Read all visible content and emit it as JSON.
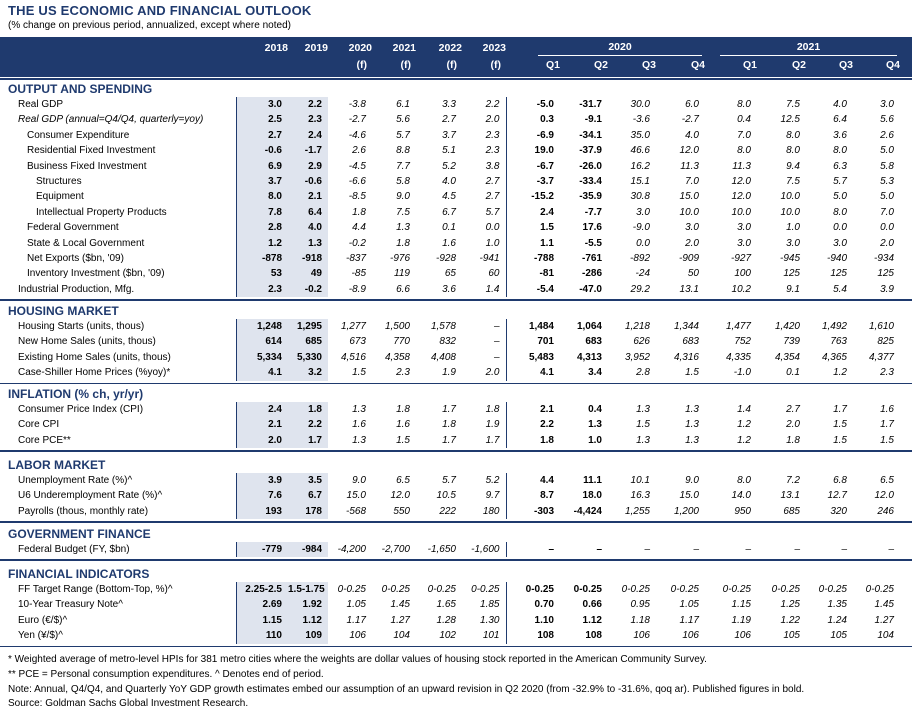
{
  "title": "THE US ECONOMIC AND FINANCIAL OUTLOOK",
  "subtitle": "(% change on previous period, annualized, except where noted)",
  "columns": {
    "annual": [
      [
        "2018",
        ""
      ],
      [
        "2019",
        ""
      ],
      [
        "2020",
        "(f)"
      ],
      [
        "2021",
        "(f)"
      ],
      [
        "2022",
        "(f)"
      ],
      [
        "2023",
        "(f)"
      ]
    ],
    "group2020": "2020",
    "group2021": "2021",
    "quarters": [
      "Q1",
      "Q2",
      "Q3",
      "Q4",
      "Q1",
      "Q2",
      "Q3",
      "Q4"
    ]
  },
  "sections": [
    {
      "title": "OUTPUT AND SPENDING",
      "rows": [
        {
          "label": "Real GDP",
          "indent": 0,
          "italic": false,
          "vals": [
            "3.0",
            "2.2",
            "-3.8",
            "6.1",
            "3.3",
            "2.2",
            "-5.0",
            "-31.7",
            "30.0",
            "6.0",
            "8.0",
            "7.5",
            "4.0",
            "3.0"
          ]
        },
        {
          "label": "Real GDP (annual=Q4/Q4, quarterly=yoy)",
          "indent": 0,
          "italic": true,
          "vals": [
            "2.5",
            "2.3",
            "-2.7",
            "5.6",
            "2.7",
            "2.0",
            "0.3",
            "-9.1",
            "-3.6",
            "-2.7",
            "0.4",
            "12.5",
            "6.4",
            "5.6"
          ]
        },
        {
          "label": "Consumer Expenditure",
          "indent": 1,
          "italic": false,
          "vals": [
            "2.7",
            "2.4",
            "-4.6",
            "5.7",
            "3.7",
            "2.3",
            "-6.9",
            "-34.1",
            "35.0",
            "4.0",
            "7.0",
            "8.0",
            "3.6",
            "2.6"
          ]
        },
        {
          "label": "Residential Fixed Investment",
          "indent": 1,
          "italic": false,
          "vals": [
            "-0.6",
            "-1.7",
            "2.6",
            "8.8",
            "5.1",
            "2.3",
            "19.0",
            "-37.9",
            "46.6",
            "12.0",
            "8.0",
            "8.0",
            "8.0",
            "5.0"
          ]
        },
        {
          "label": "Business Fixed Investment",
          "indent": 1,
          "italic": false,
          "vals": [
            "6.9",
            "2.9",
            "-4.5",
            "7.7",
            "5.2",
            "3.8",
            "-6.7",
            "-26.0",
            "16.2",
            "11.3",
            "11.3",
            "9.4",
            "6.3",
            "5.8"
          ]
        },
        {
          "label": "Structures",
          "indent": 2,
          "italic": false,
          "vals": [
            "3.7",
            "-0.6",
            "-6.6",
            "5.8",
            "4.0",
            "2.7",
            "-3.7",
            "-33.4",
            "15.1",
            "7.0",
            "12.0",
            "7.5",
            "5.7",
            "5.3"
          ]
        },
        {
          "label": "Equipment",
          "indent": 2,
          "italic": false,
          "vals": [
            "8.0",
            "2.1",
            "-8.5",
            "9.0",
            "4.5",
            "2.7",
            "-15.2",
            "-35.9",
            "30.8",
            "15.0",
            "12.0",
            "10.0",
            "5.0",
            "5.0"
          ]
        },
        {
          "label": "Intellectual Property Products",
          "indent": 2,
          "italic": false,
          "vals": [
            "7.8",
            "6.4",
            "1.8",
            "7.5",
            "6.7",
            "5.7",
            "2.4",
            "-7.7",
            "3.0",
            "10.0",
            "10.0",
            "10.0",
            "8.0",
            "7.0"
          ]
        },
        {
          "label": "Federal Government",
          "indent": 1,
          "italic": false,
          "vals": [
            "2.8",
            "4.0",
            "4.4",
            "1.3",
            "0.1",
            "0.0",
            "1.5",
            "17.6",
            "-9.0",
            "3.0",
            "3.0",
            "1.0",
            "0.0",
            "0.0"
          ]
        },
        {
          "label": "State & Local Government",
          "indent": 1,
          "italic": false,
          "vals": [
            "1.2",
            "1.3",
            "-0.2",
            "1.8",
            "1.6",
            "1.0",
            "1.1",
            "-5.5",
            "0.0",
            "2.0",
            "3.0",
            "3.0",
            "3.0",
            "2.0"
          ]
        },
        {
          "label": "Net Exports ($bn, '09)",
          "indent": 1,
          "italic": false,
          "vals": [
            "-878",
            "-918",
            "-837",
            "-976",
            "-928",
            "-941",
            "-788",
            "-761",
            "-892",
            "-909",
            "-927",
            "-945",
            "-940",
            "-934"
          ]
        },
        {
          "label": "Inventory Investment ($bn, '09)",
          "indent": 1,
          "italic": false,
          "vals": [
            "53",
            "49",
            "-85",
            "119",
            "65",
            "60",
            "-81",
            "-286",
            "-24",
            "50",
            "100",
            "125",
            "125",
            "125"
          ]
        },
        {
          "label": "Industrial Production, Mfg.",
          "indent": 0,
          "italic": false,
          "vals": [
            "2.3",
            "-0.2",
            "-8.9",
            "6.6",
            "3.6",
            "1.4",
            "-5.4",
            "-47.0",
            "29.2",
            "13.1",
            "10.2",
            "9.1",
            "5.4",
            "3.9"
          ]
        }
      ]
    },
    {
      "title": "HOUSING MARKET",
      "rows": [
        {
          "label": "Housing Starts (units, thous)",
          "indent": 0,
          "italic": false,
          "vals": [
            "1,248",
            "1,295",
            "1,277",
            "1,500",
            "1,578",
            "–",
            "1,484",
            "1,064",
            "1,218",
            "1,344",
            "1,477",
            "1,420",
            "1,492",
            "1,610"
          ]
        },
        {
          "label": "New Home Sales (units, thous)",
          "indent": 0,
          "italic": false,
          "vals": [
            "614",
            "685",
            "673",
            "770",
            "832",
            "–",
            "701",
            "683",
            "626",
            "683",
            "752",
            "739",
            "763",
            "825"
          ]
        },
        {
          "label": "Existing Home Sales (units, thous)",
          "indent": 0,
          "italic": false,
          "vals": [
            "5,334",
            "5,330",
            "4,516",
            "4,358",
            "4,408",
            "–",
            "5,483",
            "4,313",
            "3,952",
            "4,316",
            "4,335",
            "4,354",
            "4,365",
            "4,377"
          ]
        },
        {
          "label": "Case-Shiller Home Prices (%yoy)*",
          "indent": 0,
          "italic": false,
          "vals": [
            "4.1",
            "3.2",
            "1.5",
            "2.3",
            "1.9",
            "2.0",
            "4.1",
            "3.4",
            "2.8",
            "1.5",
            "-1.0",
            "0.1",
            "1.2",
            "2.3"
          ]
        }
      ]
    },
    {
      "title": "INFLATION (% ch, yr/yr)",
      "rows": [
        {
          "label": "Consumer Price Index (CPI)",
          "indent": 0,
          "italic": false,
          "vals": [
            "2.4",
            "1.8",
            "1.3",
            "1.8",
            "1.7",
            "1.8",
            "2.1",
            "0.4",
            "1.3",
            "1.3",
            "1.4",
            "2.7",
            "1.7",
            "1.6"
          ]
        },
        {
          "label": "Core CPI",
          "indent": 0,
          "italic": false,
          "vals": [
            "2.1",
            "2.2",
            "1.6",
            "1.6",
            "1.8",
            "1.9",
            "2.2",
            "1.3",
            "1.5",
            "1.3",
            "1.2",
            "2.0",
            "1.5",
            "1.7"
          ]
        },
        {
          "label": "Core PCE**",
          "indent": 0,
          "italic": false,
          "vals": [
            "2.0",
            "1.7",
            "1.3",
            "1.5",
            "1.7",
            "1.7",
            "1.8",
            "1.0",
            "1.3",
            "1.3",
            "1.2",
            "1.8",
            "1.5",
            "1.5"
          ]
        }
      ]
    },
    {
      "title": "LABOR MARKET",
      "rows": [
        {
          "label": "Unemployment Rate (%)^",
          "indent": 0,
          "italic": false,
          "vals": [
            "3.9",
            "3.5",
            "9.0",
            "6.5",
            "5.7",
            "5.2",
            "4.4",
            "11.1",
            "10.1",
            "9.0",
            "8.0",
            "7.2",
            "6.8",
            "6.5"
          ]
        },
        {
          "label": "U6 Underemployment Rate (%)^",
          "indent": 0,
          "italic": false,
          "vals": [
            "7.6",
            "6.7",
            "15.0",
            "12.0",
            "10.5",
            "9.7",
            "8.7",
            "18.0",
            "16.3",
            "15.0",
            "14.0",
            "13.1",
            "12.7",
            "12.0"
          ]
        },
        {
          "label": "Payrolls (thous, monthly rate)",
          "indent": 0,
          "italic": false,
          "vals": [
            "193",
            "178",
            "-568",
            "550",
            "222",
            "180",
            "-303",
            "-4,424",
            "1,255",
            "1,200",
            "950",
            "685",
            "320",
            "246"
          ]
        }
      ]
    },
    {
      "title": "GOVERNMENT FINANCE",
      "rows": [
        {
          "label": "Federal Budget (FY, $bn)",
          "indent": 0,
          "italic": false,
          "vals": [
            "-779",
            "-984",
            "-4,200",
            "-2,700",
            "-1,650",
            "-1,600",
            "–",
            "–",
            "–",
            "–",
            "–",
            "–",
            "–",
            "–"
          ]
        }
      ]
    },
    {
      "title": "FINANCIAL INDICATORS",
      "rows": [
        {
          "label": "FF Target Range (Bottom-Top, %)^",
          "indent": 0,
          "italic": false,
          "vals": [
            "2.25-2.5",
            "1.5-1.75",
            "0-0.25",
            "0-0.25",
            "0-0.25",
            "0-0.25",
            "0-0.25",
            "0-0.25",
            "0-0.25",
            "0-0.25",
            "0-0.25",
            "0-0.25",
            "0-0.25",
            "0-0.25"
          ]
        },
        {
          "label": "10-Year Treasury Note^",
          "indent": 0,
          "italic": false,
          "vals": [
            "2.69",
            "1.92",
            "1.05",
            "1.45",
            "1.65",
            "1.85",
            "0.70",
            "0.66",
            "0.95",
            "1.05",
            "1.15",
            "1.25",
            "1.35",
            "1.45"
          ]
        },
        {
          "label": "Euro (€/$)^",
          "indent": 0,
          "italic": false,
          "vals": [
            "1.15",
            "1.12",
            "1.17",
            "1.27",
            "1.28",
            "1.30",
            "1.10",
            "1.12",
            "1.18",
            "1.17",
            "1.19",
            "1.22",
            "1.24",
            "1.27"
          ]
        },
        {
          "label": "Yen (¥/$)^",
          "indent": 0,
          "italic": false,
          "vals": [
            "110",
            "109",
            "106",
            "104",
            "102",
            "101",
            "108",
            "108",
            "106",
            "106",
            "106",
            "105",
            "105",
            "104"
          ]
        }
      ]
    }
  ],
  "footnotes": [
    "* Weighted average of metro-level HPIs for 381 metro cities where the weights are dollar values of housing stock reported in the American Community Survey.",
    "** PCE = Personal consumption expenditures.  ^ Denotes end of period.",
    "Note: Annual, Q4/Q4, and Quarterly YoY GDP growth estimates embed our assumption of an upward revision in Q2 2020 (from -32.9% to -31.6%, qoq ar). Published figures in bold.",
    "Source: Goldman Sachs Global Investment Research."
  ]
}
